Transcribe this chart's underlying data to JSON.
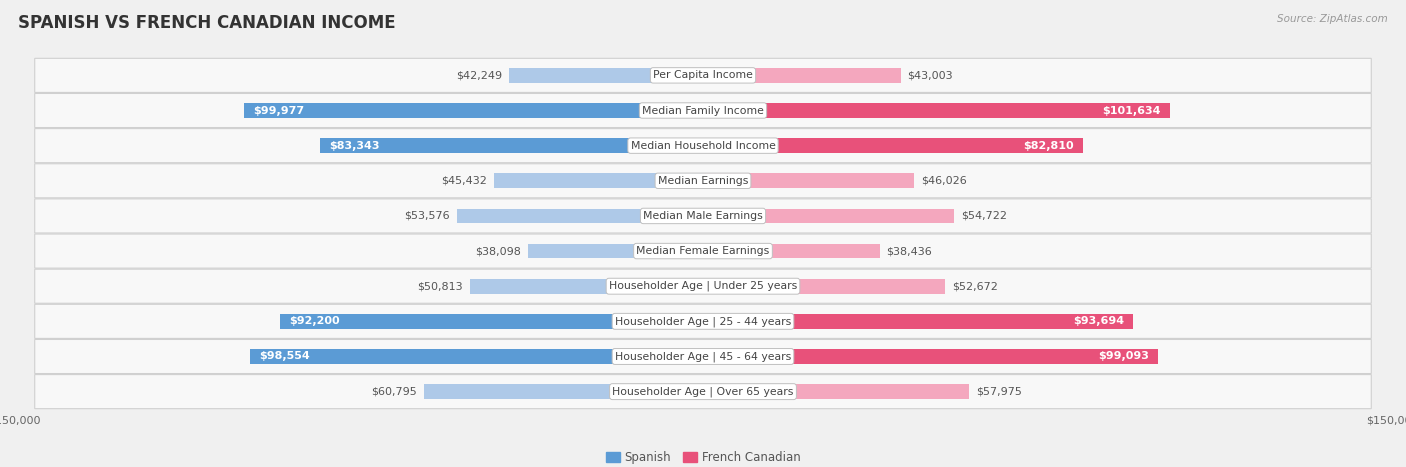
{
  "title": "SPANISH VS FRENCH CANADIAN INCOME",
  "source": "Source: ZipAtlas.com",
  "categories": [
    "Per Capita Income",
    "Median Family Income",
    "Median Household Income",
    "Median Earnings",
    "Median Male Earnings",
    "Median Female Earnings",
    "Householder Age | Under 25 years",
    "Householder Age | 25 - 44 years",
    "Householder Age | 45 - 64 years",
    "Householder Age | Over 65 years"
  ],
  "spanish_values": [
    42249,
    99977,
    83343,
    45432,
    53576,
    38098,
    50813,
    92200,
    98554,
    60795
  ],
  "french_values": [
    43003,
    101634,
    82810,
    46026,
    54722,
    38436,
    52672,
    93694,
    99093,
    57975
  ],
  "spanish_labels": [
    "$42,249",
    "$99,977",
    "$83,343",
    "$45,432",
    "$53,576",
    "$38,098",
    "$50,813",
    "$92,200",
    "$98,554",
    "$60,795"
  ],
  "french_labels": [
    "$43,003",
    "$101,634",
    "$82,810",
    "$46,026",
    "$54,722",
    "$38,436",
    "$52,672",
    "$93,694",
    "$99,093",
    "$57,975"
  ],
  "max_value": 150000,
  "spanish_color_large": "#5B9BD5",
  "spanish_color_small": "#AEC9E8",
  "french_color_large": "#E8517A",
  "french_color_small": "#F4A7BE",
  "large_threshold": 65000,
  "bar_height": 0.42,
  "bg_color": "#f0f0f0",
  "row_bg": "#f8f8f8",
  "label_fontsize": 8.0,
  "title_fontsize": 12,
  "category_fontsize": 7.8,
  "legend_fontsize": 8.5,
  "axis_label_fontsize": 8
}
